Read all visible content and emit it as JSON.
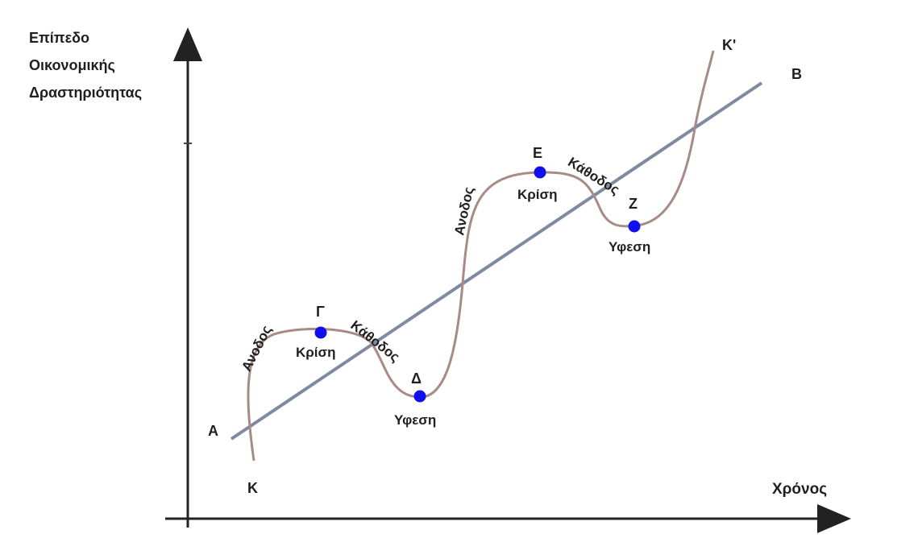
{
  "yaxis": {
    "lines": [
      "Επίπεδο",
      "Οικονομικής",
      "Δραστηριότητας"
    ]
  },
  "xaxis": {
    "label": "Χρόνος"
  },
  "trend": {
    "start_label": "Α",
    "end_label": "Β"
  },
  "curve": {
    "start_label": "Κ",
    "end_label": "Κ'"
  },
  "points": {
    "gamma": {
      "letter": "Γ",
      "phase": "Κρίση"
    },
    "delta": {
      "letter": "Δ",
      "phase": "Υφεση"
    },
    "epsilon": {
      "letter": "Ε",
      "phase": "Κρίση"
    },
    "zeta": {
      "letter": "Ζ",
      "phase": "Υφεση"
    }
  },
  "phases": {
    "rise_1": "Ανοδος",
    "fall_1": "Κάθοδος",
    "rise_2": "Ανοδος",
    "fall_2": "Κάθοδος"
  },
  "colors": {
    "curve": "#a88a86",
    "trend": "#7d8aa0",
    "point": "#1010ee",
    "axis": "#222222"
  }
}
